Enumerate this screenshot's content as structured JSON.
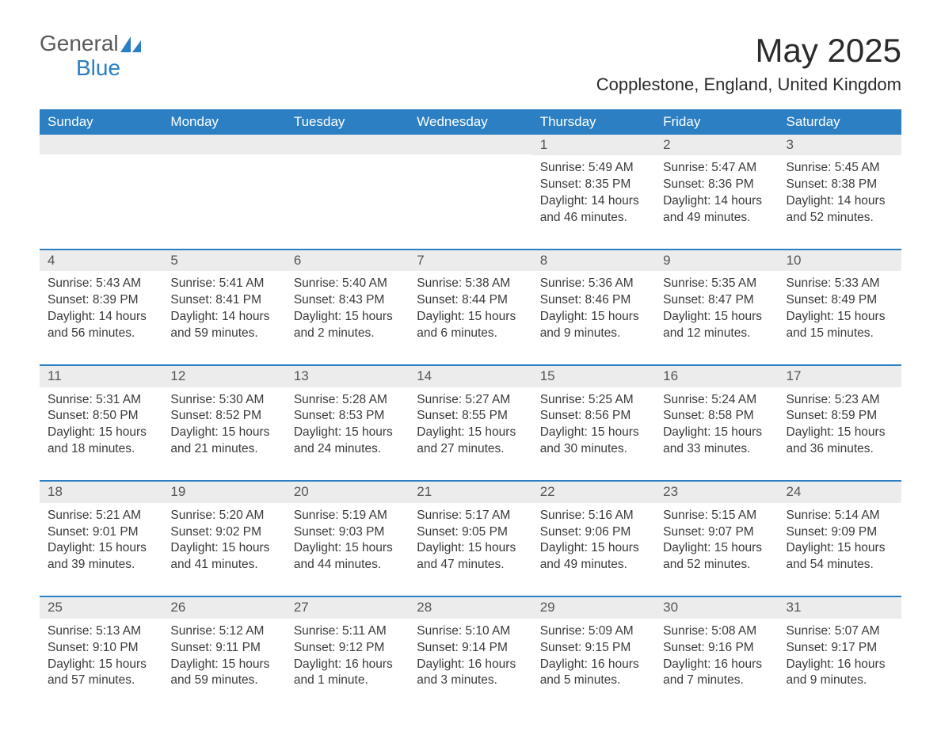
{
  "logo": {
    "general": "General",
    "blue": "Blue"
  },
  "title": "May 2025",
  "subtitle": "Copplestone, England, United Kingdom",
  "colors": {
    "header_bg": "#2b7fc2",
    "header_text": "#ffffff",
    "band_bg": "#ececec",
    "rule": "#2b7fc2",
    "page_bg": "#ffffff",
    "body_text": "#3a3a3a",
    "logo_gray": "#595959",
    "logo_blue": "#2b7fc2"
  },
  "columns": [
    "Sunday",
    "Monday",
    "Tuesday",
    "Wednesday",
    "Thursday",
    "Friday",
    "Saturday"
  ],
  "weeks": [
    [
      {
        "n": "",
        "sr": "",
        "ss": "",
        "dl": ""
      },
      {
        "n": "",
        "sr": "",
        "ss": "",
        "dl": ""
      },
      {
        "n": "",
        "sr": "",
        "ss": "",
        "dl": ""
      },
      {
        "n": "",
        "sr": "",
        "ss": "",
        "dl": ""
      },
      {
        "n": "1",
        "sr": "Sunrise: 5:49 AM",
        "ss": "Sunset: 8:35 PM",
        "dl": "Daylight: 14 hours and 46 minutes."
      },
      {
        "n": "2",
        "sr": "Sunrise: 5:47 AM",
        "ss": "Sunset: 8:36 PM",
        "dl": "Daylight: 14 hours and 49 minutes."
      },
      {
        "n": "3",
        "sr": "Sunrise: 5:45 AM",
        "ss": "Sunset: 8:38 PM",
        "dl": "Daylight: 14 hours and 52 minutes."
      }
    ],
    [
      {
        "n": "4",
        "sr": "Sunrise: 5:43 AM",
        "ss": "Sunset: 8:39 PM",
        "dl": "Daylight: 14 hours and 56 minutes."
      },
      {
        "n": "5",
        "sr": "Sunrise: 5:41 AM",
        "ss": "Sunset: 8:41 PM",
        "dl": "Daylight: 14 hours and 59 minutes."
      },
      {
        "n": "6",
        "sr": "Sunrise: 5:40 AM",
        "ss": "Sunset: 8:43 PM",
        "dl": "Daylight: 15 hours and 2 minutes."
      },
      {
        "n": "7",
        "sr": "Sunrise: 5:38 AM",
        "ss": "Sunset: 8:44 PM",
        "dl": "Daylight: 15 hours and 6 minutes."
      },
      {
        "n": "8",
        "sr": "Sunrise: 5:36 AM",
        "ss": "Sunset: 8:46 PM",
        "dl": "Daylight: 15 hours and 9 minutes."
      },
      {
        "n": "9",
        "sr": "Sunrise: 5:35 AM",
        "ss": "Sunset: 8:47 PM",
        "dl": "Daylight: 15 hours and 12 minutes."
      },
      {
        "n": "10",
        "sr": "Sunrise: 5:33 AM",
        "ss": "Sunset: 8:49 PM",
        "dl": "Daylight: 15 hours and 15 minutes."
      }
    ],
    [
      {
        "n": "11",
        "sr": "Sunrise: 5:31 AM",
        "ss": "Sunset: 8:50 PM",
        "dl": "Daylight: 15 hours and 18 minutes."
      },
      {
        "n": "12",
        "sr": "Sunrise: 5:30 AM",
        "ss": "Sunset: 8:52 PM",
        "dl": "Daylight: 15 hours and 21 minutes."
      },
      {
        "n": "13",
        "sr": "Sunrise: 5:28 AM",
        "ss": "Sunset: 8:53 PM",
        "dl": "Daylight: 15 hours and 24 minutes."
      },
      {
        "n": "14",
        "sr": "Sunrise: 5:27 AM",
        "ss": "Sunset: 8:55 PM",
        "dl": "Daylight: 15 hours and 27 minutes."
      },
      {
        "n": "15",
        "sr": "Sunrise: 5:25 AM",
        "ss": "Sunset: 8:56 PM",
        "dl": "Daylight: 15 hours and 30 minutes."
      },
      {
        "n": "16",
        "sr": "Sunrise: 5:24 AM",
        "ss": "Sunset: 8:58 PM",
        "dl": "Daylight: 15 hours and 33 minutes."
      },
      {
        "n": "17",
        "sr": "Sunrise: 5:23 AM",
        "ss": "Sunset: 8:59 PM",
        "dl": "Daylight: 15 hours and 36 minutes."
      }
    ],
    [
      {
        "n": "18",
        "sr": "Sunrise: 5:21 AM",
        "ss": "Sunset: 9:01 PM",
        "dl": "Daylight: 15 hours and 39 minutes."
      },
      {
        "n": "19",
        "sr": "Sunrise: 5:20 AM",
        "ss": "Sunset: 9:02 PM",
        "dl": "Daylight: 15 hours and 41 minutes."
      },
      {
        "n": "20",
        "sr": "Sunrise: 5:19 AM",
        "ss": "Sunset: 9:03 PM",
        "dl": "Daylight: 15 hours and 44 minutes."
      },
      {
        "n": "21",
        "sr": "Sunrise: 5:17 AM",
        "ss": "Sunset: 9:05 PM",
        "dl": "Daylight: 15 hours and 47 minutes."
      },
      {
        "n": "22",
        "sr": "Sunrise: 5:16 AM",
        "ss": "Sunset: 9:06 PM",
        "dl": "Daylight: 15 hours and 49 minutes."
      },
      {
        "n": "23",
        "sr": "Sunrise: 5:15 AM",
        "ss": "Sunset: 9:07 PM",
        "dl": "Daylight: 15 hours and 52 minutes."
      },
      {
        "n": "24",
        "sr": "Sunrise: 5:14 AM",
        "ss": "Sunset: 9:09 PM",
        "dl": "Daylight: 15 hours and 54 minutes."
      }
    ],
    [
      {
        "n": "25",
        "sr": "Sunrise: 5:13 AM",
        "ss": "Sunset: 9:10 PM",
        "dl": "Daylight: 15 hours and 57 minutes."
      },
      {
        "n": "26",
        "sr": "Sunrise: 5:12 AM",
        "ss": "Sunset: 9:11 PM",
        "dl": "Daylight: 15 hours and 59 minutes."
      },
      {
        "n": "27",
        "sr": "Sunrise: 5:11 AM",
        "ss": "Sunset: 9:12 PM",
        "dl": "Daylight: 16 hours and 1 minute."
      },
      {
        "n": "28",
        "sr": "Sunrise: 5:10 AM",
        "ss": "Sunset: 9:14 PM",
        "dl": "Daylight: 16 hours and 3 minutes."
      },
      {
        "n": "29",
        "sr": "Sunrise: 5:09 AM",
        "ss": "Sunset: 9:15 PM",
        "dl": "Daylight: 16 hours and 5 minutes."
      },
      {
        "n": "30",
        "sr": "Sunrise: 5:08 AM",
        "ss": "Sunset: 9:16 PM",
        "dl": "Daylight: 16 hours and 7 minutes."
      },
      {
        "n": "31",
        "sr": "Sunrise: 5:07 AM",
        "ss": "Sunset: 9:17 PM",
        "dl": "Daylight: 16 hours and 9 minutes."
      }
    ]
  ]
}
